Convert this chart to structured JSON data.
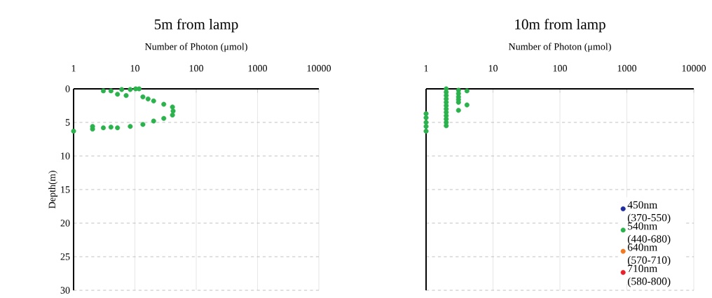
{
  "chart_data": [
    {
      "type": "scatter",
      "title": "5m from lamp",
      "xlabel": "Number of Photon (μmol)",
      "ylabel": "Depth(m)",
      "log": "x",
      "xlim": [
        1,
        10000
      ],
      "xticks": [
        1,
        10,
        100,
        1000,
        10000
      ],
      "ylim": [
        30,
        0
      ],
      "yticks": [
        0,
        5,
        10,
        15,
        20,
        25,
        30
      ],
      "grid": true,
      "marker": "circle",
      "legend": false,
      "series": [
        {
          "color": "#2bb24c",
          "x": [
            3.06,
            4.07,
            5.2,
            6.1,
            7.2,
            8.4,
            10.3,
            11.7,
            13.5,
            16.4,
            20.2,
            29.6,
            41,
            42,
            41,
            29.6,
            20.2,
            13.5,
            8.4,
            5.2,
            4.07,
            3.06,
            2.04,
            2.04,
            1
          ],
          "values": [
            0.3,
            0.3,
            0.8,
            0.1,
            1.0,
            0.1,
            0,
            0,
            1.2,
            1.5,
            1.8,
            2.3,
            2.7,
            3.3,
            3.9,
            4.4,
            4.8,
            5.3,
            5.6,
            5.8,
            5.7,
            5.8,
            6.0,
            5.6,
            6.3
          ]
        }
      ]
    },
    {
      "type": "scatter",
      "title": "10m from lamp",
      "xlabel": "Number of Photon (μmol)",
      "log": "x",
      "xlim": [
        1,
        10000
      ],
      "xticks": [
        1,
        10,
        100,
        1000,
        10000
      ],
      "ylim": [
        30,
        0
      ],
      "yticks": [
        0,
        5,
        10,
        15,
        20,
        25,
        30
      ],
      "tick_labels": "x",
      "grid": true,
      "marker": "circle",
      "legend": "bottom right",
      "series": [
        {
          "name": "450nm (370-550)",
          "color": "#1f2d9e"
        },
        {
          "name": "540nm (440-680)",
          "color": "#2bb24c",
          "x": [
            2,
            2,
            2,
            2,
            2,
            2,
            2,
            2,
            2,
            2,
            2,
            2,
            3.05,
            3.05,
            3.05,
            3.05,
            3.05,
            3.05,
            4.08,
            4.08,
            1,
            1,
            1,
            1,
            1
          ],
          "values": [
            0,
            0.5,
            1,
            1.5,
            2,
            2.5,
            3,
            3.5,
            4,
            4.5,
            5,
            5.5,
            0.2,
            0.7,
            1.2,
            1.6,
            2.0,
            3.2,
            0.3,
            2.4,
            3.7,
            4.3,
            5,
            5.6,
            6.3
          ]
        },
        {
          "name": "640nm (570-710)",
          "color": "#f07a22"
        },
        {
          "name": "710nm (580-800)",
          "color": "#e8202a"
        }
      ]
    }
  ]
}
